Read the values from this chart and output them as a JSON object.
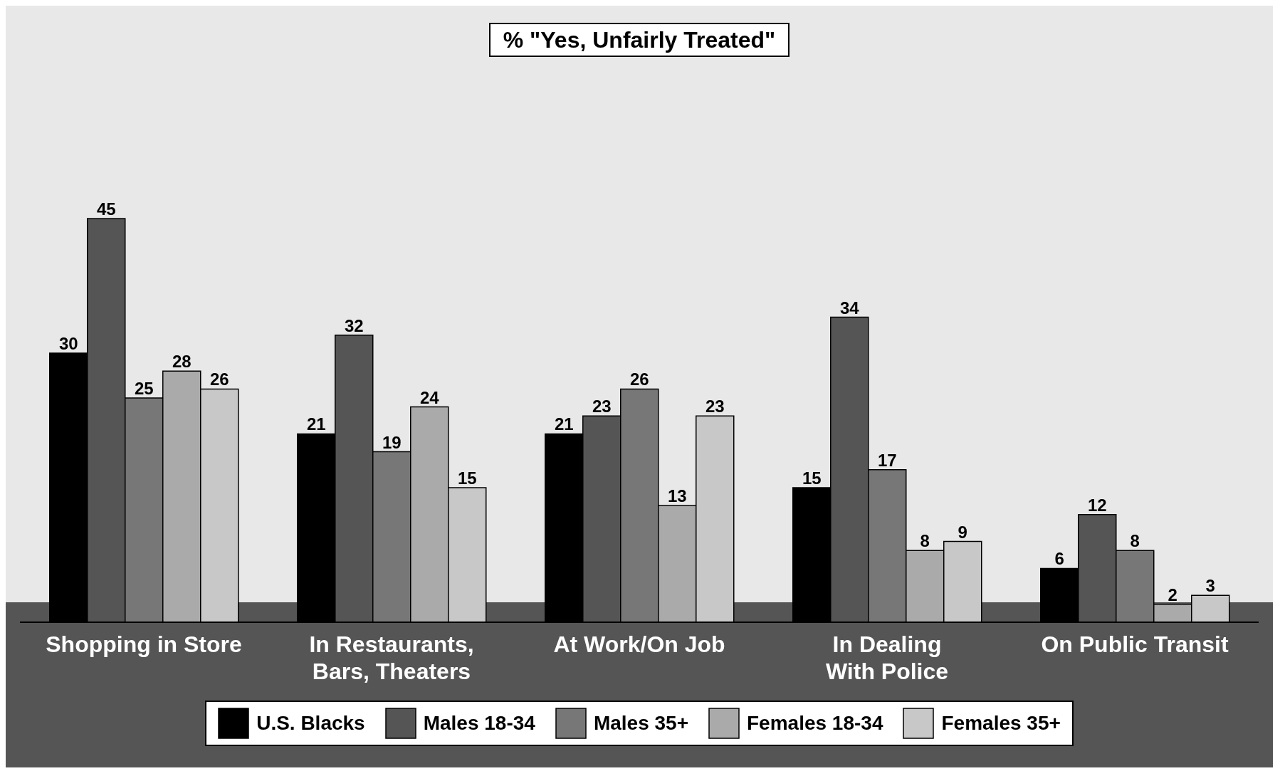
{
  "chart_data": {
    "type": "bar",
    "title": "% \"Yes, Unfairly Treated\"",
    "categories": [
      "Shopping in Store",
      "In Restaurants, Bars, Theaters",
      "At Work/On Job",
      "In Dealing With Police",
      "On Public Transit"
    ],
    "series": [
      {
        "name": "U.S. Blacks",
        "color": "#000000",
        "values": [
          30,
          21,
          21,
          15,
          6
        ]
      },
      {
        "name": "Males 18-34",
        "color": "#555555",
        "values": [
          45,
          32,
          23,
          34,
          12
        ]
      },
      {
        "name": "Males 35+",
        "color": "#777777",
        "values": [
          25,
          19,
          26,
          17,
          8
        ]
      },
      {
        "name": "Females 18-34",
        "color": "#aaaaaa",
        "values": [
          28,
          24,
          13,
          8,
          2
        ]
      },
      {
        "name": "Females 35+",
        "color": "#c8c8c8",
        "values": [
          26,
          15,
          23,
          9,
          3
        ]
      }
    ],
    "data_labels": true,
    "legend": "bottom",
    "grid": false,
    "tick_labels": "x"
  }
}
